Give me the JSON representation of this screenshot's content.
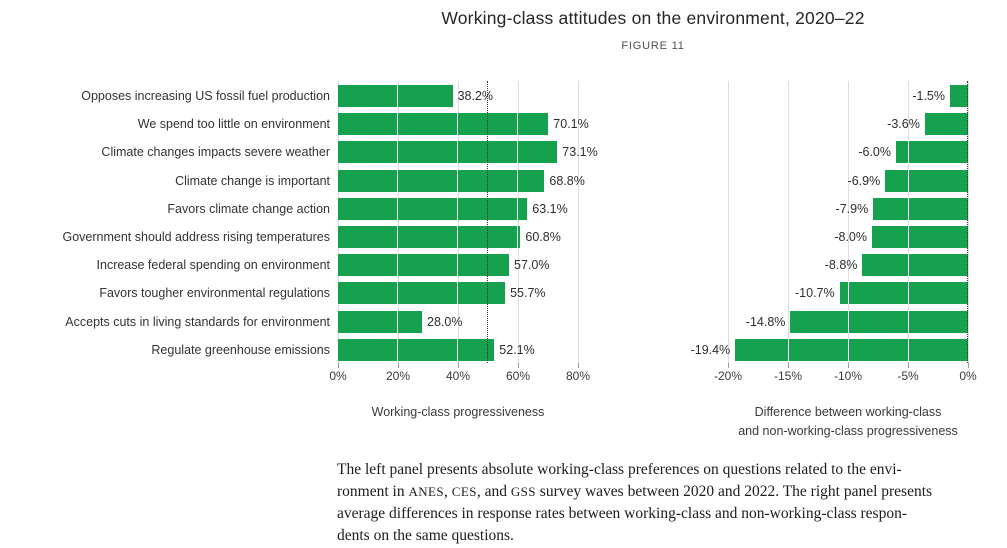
{
  "header": {
    "title": "Working-class attitudes on the environment, 2020–22",
    "figure_label": "FIGURE 11"
  },
  "chart_data": {
    "type": "bar",
    "orientation": "horizontal",
    "bar_color": "#15a14e",
    "grid": true,
    "categories": [
      "Opposes increasing US fossil fuel production",
      "We spend too little on environment",
      "Climate changes impacts severe weather",
      "Climate change is important",
      "Favors climate change action",
      "Government should address rising temperatures",
      "Increase federal spending on environment",
      "Favors tougher environmental regulations",
      "Accepts cuts in living standards for environment",
      "Regulate greenhouse emissions"
    ],
    "panels": [
      {
        "id": "left",
        "axis_title_lines": [
          "Working-class progressiveness"
        ],
        "values": [
          38.2,
          70.1,
          73.1,
          68.8,
          63.1,
          60.8,
          57.0,
          55.7,
          28.0,
          52.1
        ],
        "value_labels": [
          "38.2%",
          "70.1%",
          "73.1%",
          "68.8%",
          "63.1%",
          "60.8%",
          "57.0%",
          "55.7%",
          "28.0%",
          "52.1%"
        ],
        "xlim": [
          0,
          80
        ],
        "ticks": [
          0,
          20,
          40,
          60,
          80
        ],
        "tick_labels": [
          "0%",
          "20%",
          "40%",
          "60%",
          "80%"
        ],
        "reference_line": 50,
        "bar_direction": "right"
      },
      {
        "id": "right",
        "axis_title_lines": [
          "Difference between working-class",
          "and non-working-class progressiveness"
        ],
        "values": [
          -1.5,
          -3.6,
          -6.0,
          -6.9,
          -7.9,
          -8.0,
          -8.8,
          -10.7,
          -14.8,
          -19.4
        ],
        "value_labels": [
          "-1.5%",
          "-3.6%",
          "-6.0%",
          "-6.9%",
          "-7.9%",
          "-8.0%",
          "-8.8%",
          "-10.7%",
          "-14.8%",
          "-19.4%"
        ],
        "xlim": [
          -20,
          0
        ],
        "ticks": [
          -20,
          -15,
          -10,
          -5,
          0
        ],
        "tick_labels": [
          "-20%",
          "-15%",
          "-10%",
          "-5%",
          "0%"
        ],
        "reference_line": 0,
        "bar_direction": "left"
      }
    ]
  },
  "caption": {
    "lines": [
      "The left panel presents absolute working-class preferences on questions related to the envi-",
      "ronment in ANES, CES, and GSS survey waves between 2020 and 2022. The right panel presents",
      "average differences in response rates between working-class and non-working-class respon-",
      "dents on the same questions."
    ]
  }
}
